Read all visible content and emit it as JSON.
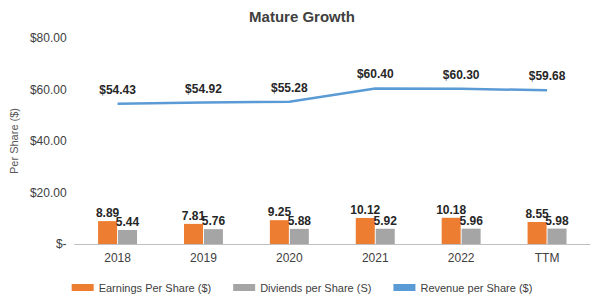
{
  "chart_data": {
    "type": "bar",
    "title": "Mature Growth",
    "y_label": "Per Share ($)",
    "categories": [
      "2018",
      "2019",
      "2020",
      "2021",
      "2022",
      "TTM"
    ],
    "series": [
      {
        "name": "Earnings Per Share ($)",
        "type": "bar",
        "color": "#ED7D31",
        "values": [
          8.89,
          7.81,
          9.25,
          10.12,
          10.18,
          8.55
        ]
      },
      {
        "name": "Diviends per Share (S)",
        "type": "bar",
        "color": "#A5A5A5",
        "values": [
          5.44,
          5.76,
          5.88,
          5.92,
          5.96,
          5.98
        ]
      },
      {
        "name": "Revenue per Share ($)",
        "type": "line",
        "color": "#5B9BD5",
        "values": [
          54.43,
          54.92,
          55.28,
          60.4,
          60.3,
          59.68
        ],
        "value_labels": [
          "$54.43",
          "$54.92",
          "$55.28",
          "$60.40",
          "$60.30",
          "$59.68"
        ]
      }
    ],
    "ylim": [
      0,
      80
    ],
    "yticks": [
      {
        "value": 0,
        "label": "$-"
      },
      {
        "value": 20,
        "label": "$20.00"
      },
      {
        "value": 40,
        "label": "$40.00"
      },
      {
        "value": 60,
        "label": "$60.00"
      },
      {
        "value": 80,
        "label": "$80.00"
      }
    ],
    "grid": false,
    "legend": "bottom",
    "data_labels": true
  }
}
